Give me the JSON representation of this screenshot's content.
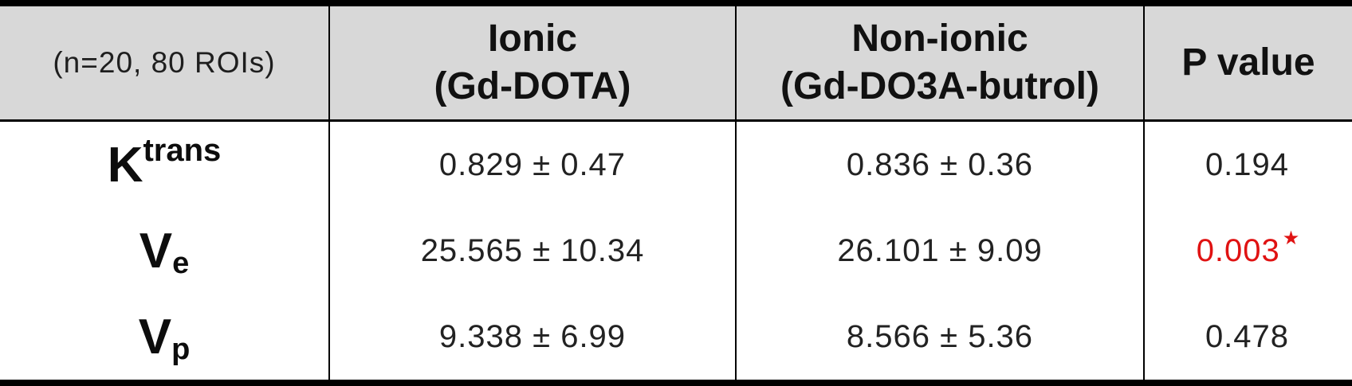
{
  "table": {
    "colors": {
      "header_bg": "#d8d8d8",
      "border": "#000000",
      "significant_red": "#e01212",
      "text": "#222222"
    },
    "header": {
      "cohort": "(n=20, 80 ROIs)",
      "ionic_line1": "Ionic",
      "ionic_line2": "(Gd-DOTA)",
      "nonionic_line1": "Non-ionic",
      "nonionic_line2": "(Gd-DO3A-butrol)",
      "pvalue": "P value"
    },
    "rows": [
      {
        "label_base": "K",
        "label_script": "trans",
        "ionic": "0.829 ± 0.47",
        "nonionic": "0.836 ± 0.36",
        "p": "0.194"
      },
      {
        "label_base": "V",
        "label_script": "e",
        "ionic": "25.565 ± 10.34",
        "nonionic": "26.101 ± 9.09",
        "p": "0.003",
        "p_star": "★",
        "p_color": "#e01212"
      },
      {
        "label_base": "V",
        "label_script": "p",
        "ionic": "9.338 ± 6.99",
        "nonionic": "8.566 ± 5.36",
        "p": "0.478"
      }
    ]
  },
  "chart_data": {
    "type": "table",
    "columns": [
      "(n=20, 80 ROIs)",
      "Ionic (Gd-DOTA)",
      "Non-ionic (Gd-DO3A-butrol)",
      "P value"
    ],
    "rows": [
      [
        "Ktrans",
        "0.829 ± 0.47",
        "0.836 ± 0.36",
        "0.194"
      ],
      [
        "Ve",
        "25.565 ± 10.34",
        "26.101 ± 9.09",
        "0.003★"
      ],
      [
        "Vp",
        "9.338 ± 6.99",
        "8.566 ± 5.36",
        "0.478"
      ]
    ]
  }
}
